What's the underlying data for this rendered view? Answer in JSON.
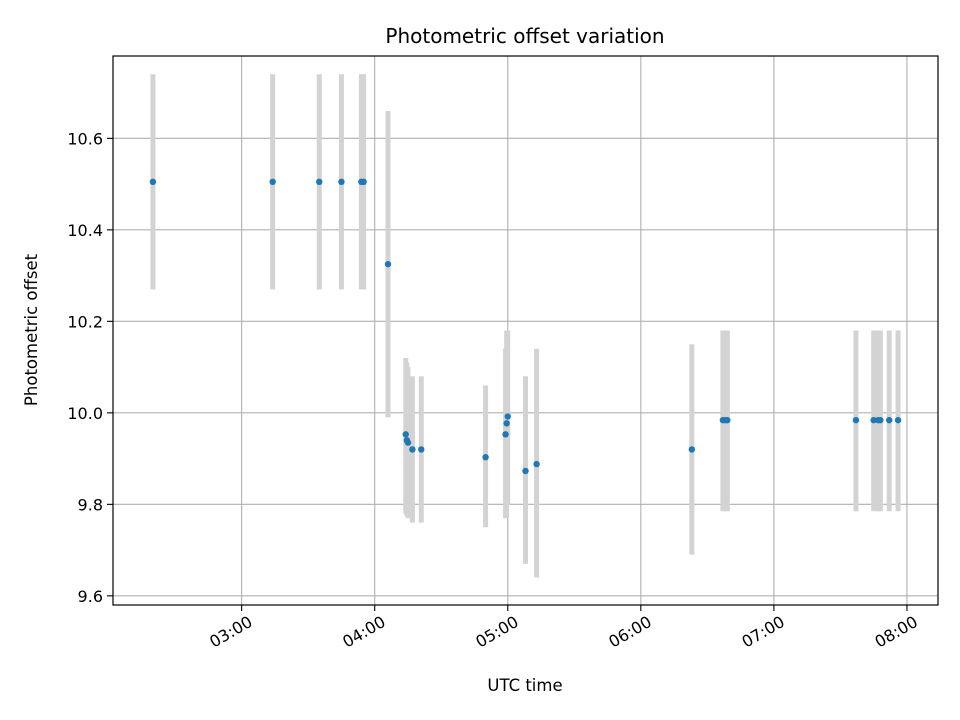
{
  "chart_data": {
    "type": "scatter",
    "title": "Photometric offset variation",
    "xlabel": "UTC time",
    "ylabel": "Photometric offset",
    "xlim": [
      "02:02",
      "08:14"
    ],
    "ylim": [
      9.58,
      10.78
    ],
    "x_ticks": [
      "03:00",
      "04:00",
      "05:00",
      "06:00",
      "07:00",
      "08:00"
    ],
    "y_ticks": [
      "9.6",
      "9.8",
      "10.0",
      "10.2",
      "10.4",
      "10.6"
    ],
    "grid": true,
    "marker_color": "#1f77b4",
    "errorbar_color": "#d3d3d3",
    "points": [
      {
        "x": "02:20",
        "y": 10.505,
        "ylo": 10.27,
        "yhi": 10.74
      },
      {
        "x": "03:14",
        "y": 10.505,
        "ylo": 10.27,
        "yhi": 10.74
      },
      {
        "x": "03:35",
        "y": 10.505,
        "ylo": 10.27,
        "yhi": 10.74
      },
      {
        "x": "03:45",
        "y": 10.505,
        "ylo": 10.27,
        "yhi": 10.74
      },
      {
        "x": "03:54",
        "y": 10.505,
        "ylo": 10.27,
        "yhi": 10.74
      },
      {
        "x": "03:55",
        "y": 10.505,
        "ylo": 10.27,
        "yhi": 10.74
      },
      {
        "x": "04:06",
        "y": 10.325,
        "ylo": 9.99,
        "yhi": 10.66
      },
      {
        "x": "04:14",
        "y": 9.953,
        "ylo": 9.78,
        "yhi": 10.12
      },
      {
        "x": "04:14.5",
        "y": 9.94,
        "ylo": 9.775,
        "yhi": 10.11
      },
      {
        "x": "04:15",
        "y": 9.935,
        "ylo": 9.77,
        "yhi": 10.1
      },
      {
        "x": "04:17",
        "y": 9.92,
        "ylo": 9.76,
        "yhi": 10.08
      },
      {
        "x": "04:21",
        "y": 9.92,
        "ylo": 9.76,
        "yhi": 10.08
      },
      {
        "x": "04:50",
        "y": 9.903,
        "ylo": 9.75,
        "yhi": 10.06
      },
      {
        "x": "04:59",
        "y": 9.953,
        "ylo": 9.77,
        "yhi": 10.14
      },
      {
        "x": "04:59.5",
        "y": 9.977,
        "ylo": 9.77,
        "yhi": 10.18
      },
      {
        "x": "05:00",
        "y": 9.992,
        "ylo": 9.8,
        "yhi": 10.18
      },
      {
        "x": "05:08",
        "y": 9.873,
        "ylo": 9.67,
        "yhi": 10.08
      },
      {
        "x": "05:13",
        "y": 9.888,
        "ylo": 9.64,
        "yhi": 10.14
      },
      {
        "x": "06:23",
        "y": 9.92,
        "ylo": 9.69,
        "yhi": 10.15
      },
      {
        "x": "06:37",
        "y": 9.984,
        "ylo": 9.785,
        "yhi": 10.18
      },
      {
        "x": "06:38",
        "y": 9.984,
        "ylo": 9.785,
        "yhi": 10.18
      },
      {
        "x": "06:39",
        "y": 9.984,
        "ylo": 9.785,
        "yhi": 10.18
      },
      {
        "x": "07:37",
        "y": 9.984,
        "ylo": 9.785,
        "yhi": 10.18
      },
      {
        "x": "07:45",
        "y": 9.984,
        "ylo": 9.785,
        "yhi": 10.18
      },
      {
        "x": "07:47",
        "y": 9.984,
        "ylo": 9.785,
        "yhi": 10.18
      },
      {
        "x": "07:48",
        "y": 9.984,
        "ylo": 9.785,
        "yhi": 10.18
      },
      {
        "x": "07:52",
        "y": 9.984,
        "ylo": 9.785,
        "yhi": 10.18
      },
      {
        "x": "07:56",
        "y": 9.984,
        "ylo": 9.785,
        "yhi": 10.18
      }
    ]
  }
}
